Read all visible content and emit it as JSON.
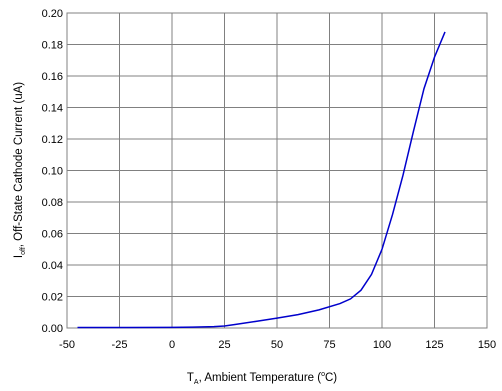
{
  "chart_data": {
    "type": "line",
    "xlabel": {
      "symbol": "T",
      "subscript": "A",
      "text": ", Ambient Temperature (",
      "superscript": "o",
      "unit": "C)"
    },
    "ylabel": {
      "symbol": "I",
      "subscript": "off",
      "text": ", Off-State Cathode Current (uA)"
    },
    "xlim": [
      -50,
      150
    ],
    "ylim": [
      0,
      0.2
    ],
    "x_ticks": [
      -50,
      -25,
      0,
      25,
      50,
      75,
      100,
      125,
      150
    ],
    "x_tick_labels": [
      "-50",
      "-25",
      "0",
      "25",
      "50",
      "75",
      "100",
      "125",
      "150"
    ],
    "y_ticks": [
      0,
      0.02,
      0.04,
      0.06,
      0.08,
      0.1,
      0.12,
      0.14,
      0.16,
      0.18,
      0.2
    ],
    "y_tick_labels": [
      "0.00",
      "0.02",
      "0.04",
      "0.06",
      "0.08",
      "0.10",
      "0.12",
      "0.14",
      "0.16",
      "0.18",
      "0.20"
    ],
    "grid": true,
    "line_color": "#0000cc",
    "grid_color": "#808080",
    "series": [
      {
        "x": [
          -45,
          -25,
          0,
          10,
          20,
          25,
          30,
          40,
          50,
          60,
          70,
          80,
          85,
          90,
          95,
          100,
          105,
          110,
          115,
          120,
          125,
          130
        ],
        "y": [
          0.0003,
          0.0003,
          0.0004,
          0.0006,
          0.0009,
          0.0013,
          0.0022,
          0.0042,
          0.0063,
          0.0085,
          0.0115,
          0.0155,
          0.0185,
          0.024,
          0.034,
          0.05,
          0.072,
          0.097,
          0.125,
          0.152,
          0.172,
          0.188
        ]
      }
    ]
  }
}
